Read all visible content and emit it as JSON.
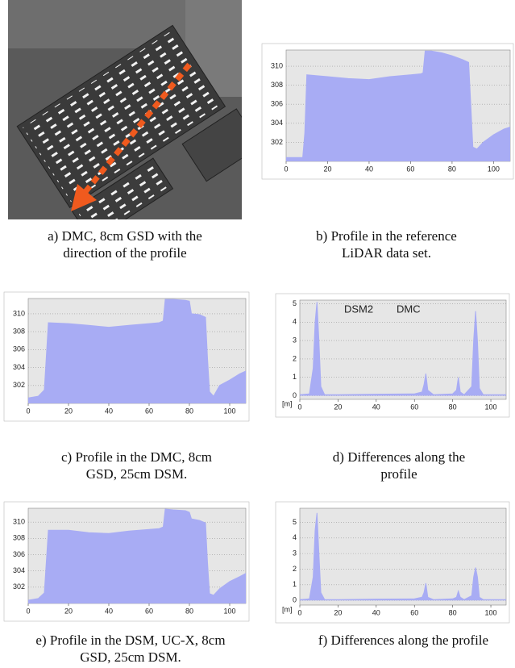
{
  "image_caption": "a) DMC, 8cm GSD with the direction of the profile",
  "chart_data": [
    {
      "type": "area",
      "caption": "b) Profile in the reference LiDAR data set.",
      "color": "#a8acf4",
      "grid": true,
      "x": [
        0,
        8,
        9,
        10,
        20,
        30,
        40,
        50,
        60,
        65,
        66,
        67,
        70,
        75,
        80,
        85,
        88,
        89,
        90,
        92,
        95,
        100,
        105,
        108
      ],
      "values": [
        300.4,
        300.4,
        303,
        309.1,
        308.9,
        308.7,
        308.6,
        308.9,
        309.1,
        309.2,
        309.3,
        311.6,
        311.6,
        311.4,
        311.1,
        310.7,
        310.4,
        306,
        301.5,
        301.3,
        302,
        302.8,
        303.4,
        303.6
      ],
      "xlim": [
        0,
        108
      ],
      "ylim": [
        300,
        311.7
      ],
      "xticks": [
        0,
        20,
        40,
        60,
        80,
        100
      ],
      "yticks": [
        302,
        304,
        306,
        308,
        310
      ]
    },
    {
      "type": "area",
      "caption": "c) Profile in the DMC, 8cm GSD, 25cm DSM.",
      "color": "#a8acf4",
      "grid": true,
      "x": [
        0,
        5,
        8,
        10,
        20,
        30,
        40,
        50,
        60,
        65,
        67,
        68,
        72,
        78,
        80,
        81,
        85,
        88,
        89,
        90,
        92,
        95,
        100,
        105,
        108
      ],
      "values": [
        300.6,
        300.8,
        301.5,
        309,
        308.9,
        308.7,
        308.5,
        308.7,
        308.9,
        309,
        309.2,
        311.6,
        311.6,
        311.5,
        311.4,
        310,
        309.9,
        309.6,
        305,
        301.3,
        300.8,
        302,
        302.6,
        303.3,
        303.6
      ],
      "xlim": [
        0,
        108
      ],
      "ylim": [
        300,
        311.7
      ],
      "xticks": [
        0,
        20,
        40,
        60,
        80,
        100
      ],
      "yticks": [
        302,
        304,
        306,
        308,
        310
      ]
    },
    {
      "type": "area",
      "caption": "d) Differences along the profile",
      "color": "#a8acf4",
      "grid": true,
      "ylabel": "[m]",
      "annotations": [
        "DSM2",
        "DMC"
      ],
      "x": [
        0,
        5,
        7,
        8,
        9,
        10,
        11,
        13,
        20,
        40,
        60,
        64,
        65,
        66,
        67,
        70,
        80,
        82,
        83,
        84,
        86,
        90,
        91,
        92,
        93,
        94,
        96,
        100,
        108
      ],
      "values": [
        0.05,
        0.1,
        1.5,
        4,
        5.1,
        3,
        0.5,
        0.05,
        0.05,
        0.08,
        0.1,
        0.2,
        0.6,
        1.2,
        0.3,
        0.05,
        0.1,
        0.3,
        1,
        0.2,
        0.05,
        0.5,
        3,
        4.6,
        3,
        0.4,
        0.05,
        0.05,
        0.05
      ],
      "xlim": [
        0,
        108
      ],
      "ylim": [
        -0.2,
        5.2
      ],
      "xticks": [
        0,
        20,
        40,
        60,
        80,
        100
      ],
      "yticks": [
        0,
        1,
        2,
        3,
        4,
        5
      ]
    },
    {
      "type": "area",
      "caption": "e) Profile in the DSM, UC-X, 8cm GSD, 25cm DSM.",
      "color": "#a8acf4",
      "grid": true,
      "x": [
        0,
        5,
        8,
        10,
        20,
        30,
        40,
        50,
        60,
        65,
        67,
        68,
        72,
        78,
        80,
        81,
        85,
        88,
        89,
        90,
        92,
        95,
        100,
        105,
        108
      ],
      "values": [
        300.4,
        300.6,
        301.3,
        309,
        309,
        308.7,
        308.6,
        308.9,
        309.1,
        309.2,
        309.4,
        311.6,
        311.5,
        311.4,
        311.2,
        310.4,
        310.2,
        309.9,
        305,
        301.2,
        301,
        301.8,
        302.7,
        303.3,
        303.7
      ],
      "xlim": [
        0,
        108
      ],
      "ylim": [
        300,
        311.7
      ],
      "xticks": [
        0,
        20,
        40,
        60,
        80,
        100
      ],
      "yticks": [
        302,
        304,
        306,
        308,
        310
      ]
    },
    {
      "type": "area",
      "caption": "f) Differences along the profile",
      "color": "#a8acf4",
      "grid": true,
      "ylabel": "[m]",
      "x": [
        0,
        5,
        7,
        8,
        9,
        10,
        11,
        13,
        20,
        40,
        60,
        64,
        65,
        66,
        67,
        70,
        80,
        82,
        83,
        84,
        86,
        90,
        91,
        92,
        93,
        94,
        96,
        100,
        108
      ],
      "values": [
        0.05,
        0.1,
        1.5,
        4.5,
        5.6,
        3,
        0.5,
        0.05,
        0.05,
        0.08,
        0.1,
        0.2,
        0.5,
        1.1,
        0.2,
        0.05,
        0.1,
        0.2,
        0.6,
        0.2,
        0.05,
        0.3,
        1.5,
        2.1,
        1.5,
        0.2,
        0.05,
        0.05,
        0.05
      ],
      "xlim": [
        0,
        108
      ],
      "ylim": [
        -0.3,
        5.9
      ],
      "xticks": [
        0,
        20,
        40,
        60,
        80,
        100
      ],
      "yticks": [
        0,
        1,
        2,
        3,
        4,
        5
      ]
    }
  ]
}
